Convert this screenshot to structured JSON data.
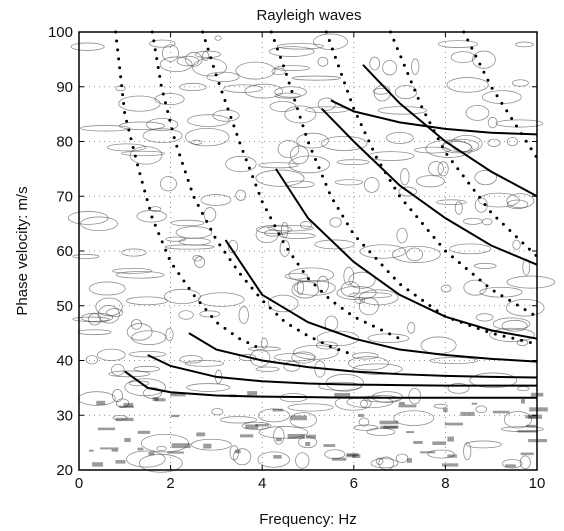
{
  "chart_data": {
    "type": "line",
    "title": "Rayleigh waves",
    "xlabel": "Frequency: Hz",
    "ylabel": "Phase velocity: m/s",
    "xlim": [
      0,
      10
    ],
    "ylim": [
      20,
      100
    ],
    "xticks": [
      0,
      2,
      4,
      6,
      8,
      10
    ],
    "yticks": [
      20,
      30,
      40,
      50,
      60,
      70,
      80,
      90,
      100
    ],
    "grid": true,
    "series": [
      {
        "style": "solid",
        "x": [
          1.0,
          1.5,
          2,
          3,
          4,
          5,
          6,
          7,
          8,
          9,
          10
        ],
        "y": [
          38,
          35,
          34.2,
          33.6,
          33.4,
          33.3,
          33.2,
          33.2,
          33.2,
          33.2,
          33.2
        ]
      },
      {
        "style": "solid",
        "x": [
          1.5,
          2,
          3,
          4,
          5,
          6,
          7,
          8,
          9,
          10
        ],
        "y": [
          41,
          39,
          37,
          36.2,
          35.8,
          35.6,
          35.5,
          35.4,
          35.4,
          35.4
        ]
      },
      {
        "style": "solid",
        "x": [
          2.4,
          3,
          4,
          5,
          6,
          7,
          8,
          9,
          10
        ],
        "y": [
          45,
          42,
          40,
          38.8,
          38,
          37.5,
          37.2,
          37,
          36.9
        ]
      },
      {
        "style": "solid",
        "x": [
          3.2,
          4,
          5,
          6,
          7,
          8,
          9,
          10
        ],
        "y": [
          62,
          52,
          47,
          44,
          42,
          41,
          40.3,
          39.8
        ]
      },
      {
        "style": "solid",
        "x": [
          4.3,
          5,
          6,
          7,
          8,
          9,
          10
        ],
        "y": [
          75,
          66,
          58,
          52,
          48,
          45.5,
          44
        ]
      },
      {
        "style": "solid",
        "x": [
          5.3,
          6,
          7,
          8,
          9,
          10
        ],
        "y": [
          86,
          80,
          72,
          66,
          61,
          57.5
        ]
      },
      {
        "style": "solid",
        "x": [
          6.2,
          7,
          8,
          9,
          10
        ],
        "y": [
          94,
          87,
          80,
          74.5,
          70
        ]
      },
      {
        "style": "solid",
        "x": [
          5.5,
          6,
          7,
          8,
          9,
          10
        ],
        "y": [
          87.5,
          85.5,
          83.5,
          82.3,
          81.6,
          81.3
        ]
      },
      {
        "style": "dotted",
        "x": [
          0.8,
          1.0,
          1.3,
          1.6,
          2.0,
          2.5,
          3.0,
          3.5,
          4.0
        ],
        "y": [
          100,
          85,
          75,
          66,
          58,
          52,
          47,
          44,
          42
        ]
      },
      {
        "style": "dotted",
        "x": [
          1.6,
          1.8,
          2.1,
          2.5,
          3.0,
          3.5,
          4.0,
          4.5,
          5.0,
          5.5,
          6.0
        ],
        "y": [
          100,
          90,
          80,
          70,
          62,
          56,
          51,
          47,
          44.5,
          42.5,
          41
        ]
      },
      {
        "style": "dotted",
        "x": [
          2.7,
          3.0,
          3.5,
          4.0,
          4.5,
          5.0,
          5.5,
          6.0,
          7.0
        ],
        "y": [
          100,
          92,
          80,
          69,
          61,
          55,
          51,
          48,
          44
        ]
      },
      {
        "style": "dotted",
        "x": [
          4.2,
          4.5,
          5.0,
          5.5,
          6.0,
          7.0,
          8.0,
          9.0,
          10.0
        ],
        "y": [
          100,
          93,
          80,
          70,
          63,
          54,
          48,
          45,
          43
        ]
      },
      {
        "style": "dotted",
        "x": [
          5.4,
          6.0,
          6.5,
          7.0,
          8.0,
          9.0,
          10.0
        ],
        "y": [
          100,
          86,
          77,
          70,
          60,
          53,
          48
        ]
      },
      {
        "style": "dotted",
        "x": [
          6.8,
          7.5,
          8.0,
          9.0,
          10.0
        ],
        "y": [
          100,
          86,
          78,
          67,
          59
        ]
      },
      {
        "style": "dotted",
        "x": [
          8.4,
          9.0,
          10.0
        ],
        "y": [
          100,
          90,
          77
        ]
      }
    ]
  }
}
